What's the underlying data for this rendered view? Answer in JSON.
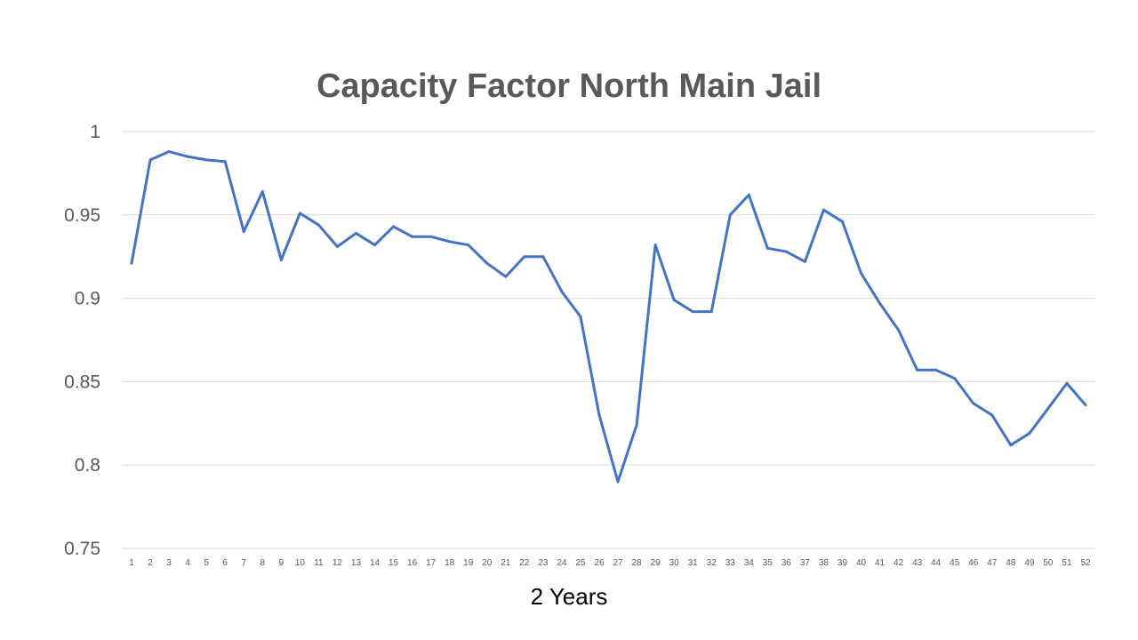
{
  "chart_data": {
    "type": "line",
    "title": "Capacity Factor North Main Jail",
    "xlabel": "2 Years",
    "ylabel": "",
    "ylim": [
      0.75,
      1
    ],
    "yticks": [
      "0.75",
      "0.8",
      "0.85",
      "0.9",
      "0.95",
      "1"
    ],
    "ytick_values": [
      0.75,
      0.8,
      0.85,
      0.9,
      0.95,
      1
    ],
    "grid": true,
    "line_color": "#4472C4",
    "x": [
      1,
      2,
      3,
      4,
      5,
      6,
      7,
      8,
      9,
      10,
      11,
      12,
      13,
      14,
      15,
      16,
      17,
      18,
      19,
      20,
      21,
      22,
      23,
      24,
      25,
      26,
      27,
      28,
      29,
      30,
      31,
      32,
      33,
      34,
      35,
      36,
      37,
      38,
      39,
      40,
      41,
      42,
      43,
      44,
      45,
      46,
      47,
      48,
      49,
      50,
      51,
      52
    ],
    "values": [
      0.921,
      0.983,
      0.988,
      0.985,
      0.983,
      0.982,
      0.94,
      0.964,
      0.923,
      0.951,
      0.944,
      0.931,
      0.939,
      0.932,
      0.943,
      0.937,
      0.937,
      0.934,
      0.932,
      0.921,
      0.913,
      0.925,
      0.925,
      0.904,
      0.889,
      0.83,
      0.79,
      0.824,
      0.932,
      0.899,
      0.892,
      0.892,
      0.95,
      0.962,
      0.93,
      0.928,
      0.922,
      0.953,
      0.946,
      0.915,
      0.897,
      0.881,
      0.857,
      0.857,
      0.852,
      0.837,
      0.83,
      0.812,
      0.819,
      0.834,
      0.849,
      0.836
    ]
  }
}
